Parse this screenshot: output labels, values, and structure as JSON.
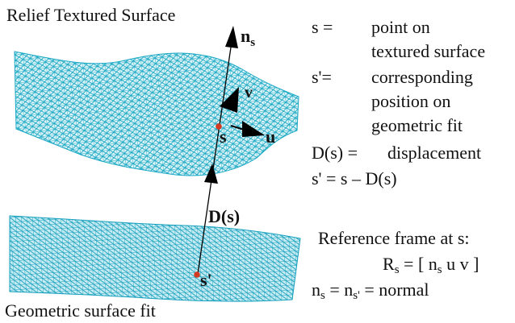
{
  "title_top": "Relief Textured Surface",
  "title_bottom": "Geometric surface fit",
  "vector_labels": {
    "normal": "n",
    "normal_sub": "s",
    "v": "v",
    "u": "u",
    "point_s": "s",
    "point_s_prime": "s'",
    "displacement": "D(s)"
  },
  "legend": {
    "s_key": "s =",
    "s_def_1": "point on",
    "s_def_2": "textured surface",
    "sp_key": "s'=",
    "sp_def_1": "corresponding",
    "sp_def_2": "position  on",
    "sp_def_3": "geometric fit",
    "d_key": "D(s) =",
    "d_def": "displacement",
    "relation": "s' = s – D(s)",
    "ref_frame": "Reference frame at s:",
    "rs_R": "R",
    "rs_sub": "s",
    "rs_rest": " = [ n",
    "rs_sub2": "s",
    "rs_end": " u v ]",
    "normal_n1": "n",
    "normal_sub1": "s",
    "normal_eq1": " = n",
    "normal_sub2": "s'",
    "normal_eq2": " = normal"
  },
  "colors": {
    "mesh": "#19a8c4",
    "mesh_fill": "#d9f3f7",
    "point": "#d33a22",
    "arrow": "#000000"
  }
}
